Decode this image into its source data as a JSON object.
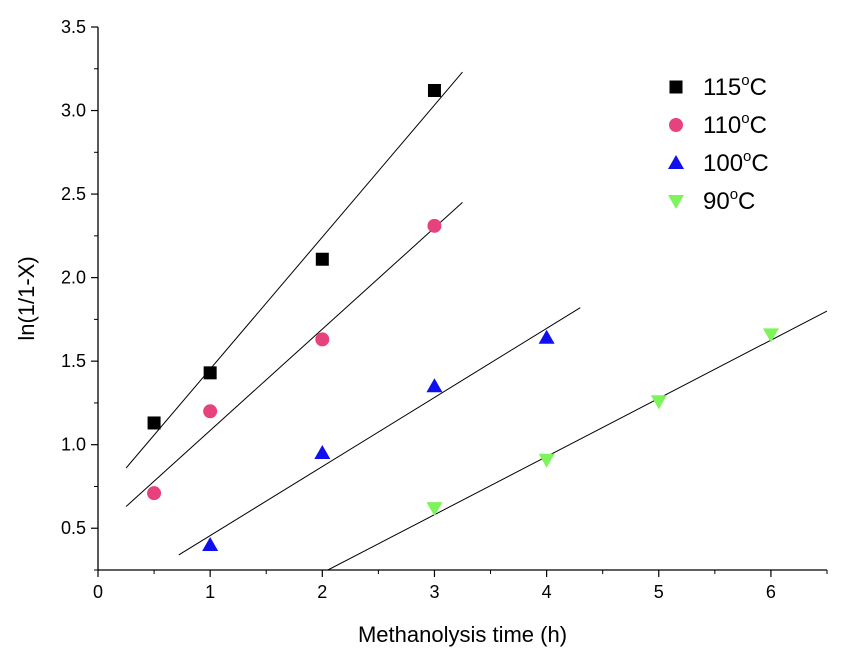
{
  "chart_data": {
    "type": "scatter",
    "title": "",
    "xlabel": "Methanolysis time (h)",
    "ylabel": "ln(1/1-X)",
    "xlim": [
      0,
      6.5
    ],
    "ylim": [
      0.25,
      3.5
    ],
    "xticks": [
      0,
      1,
      2,
      3,
      4,
      5,
      6
    ],
    "xtick_labels": [
      "0",
      "1",
      "2",
      "3",
      "4",
      "5",
      "6"
    ],
    "yticks": [
      0.5,
      1.0,
      1.5,
      2.0,
      2.5,
      3.0,
      3.5
    ],
    "ytick_labels": [
      "0.5",
      "1.0",
      "1.5",
      "2.0",
      "2.5",
      "3.0",
      "3.5"
    ],
    "grid": false,
    "legend_position": "top-right",
    "series": [
      {
        "name": "115°C",
        "legend": {
          "label": "115",
          "sup": "o",
          "unit": "C"
        },
        "marker": "square",
        "color": "#000000",
        "x": [
          0.5,
          1,
          2,
          3
        ],
        "y": [
          1.13,
          1.43,
          2.11,
          3.12
        ],
        "fit": {
          "x": [
            0.25,
            3.25
          ],
          "y": [
            0.86,
            3.23
          ]
        }
      },
      {
        "name": "110°C",
        "legend": {
          "label": "110",
          "sup": "o",
          "unit": "C"
        },
        "marker": "circle",
        "color": "#e6427e",
        "x": [
          0.5,
          1,
          2,
          3
        ],
        "y": [
          0.71,
          1.2,
          1.63,
          2.31
        ],
        "fit": {
          "x": [
            0.25,
            3.25
          ],
          "y": [
            0.63,
            2.45
          ]
        }
      },
      {
        "name": "100°C",
        "legend": {
          "label": "100",
          "sup": "o",
          "unit": "C"
        },
        "marker": "triangle-up",
        "color": "#1010ee",
        "x": [
          1,
          2,
          3,
          4
        ],
        "y": [
          0.4,
          0.95,
          1.35,
          1.64
        ],
        "fit": {
          "x": [
            0.72,
            4.3
          ],
          "y": [
            0.34,
            1.82
          ]
        }
      },
      {
        "name": "90°C",
        "legend": {
          "label": "90",
          "sup": "o",
          "unit": "C"
        },
        "marker": "triangle-down",
        "color": "#7df55a",
        "x": [
          3,
          4,
          5,
          6
        ],
        "y": [
          0.62,
          0.91,
          1.26,
          1.66
        ],
        "fit": {
          "x": [
            2.05,
            6.5
          ],
          "y": [
            0.25,
            1.8
          ]
        }
      }
    ]
  }
}
